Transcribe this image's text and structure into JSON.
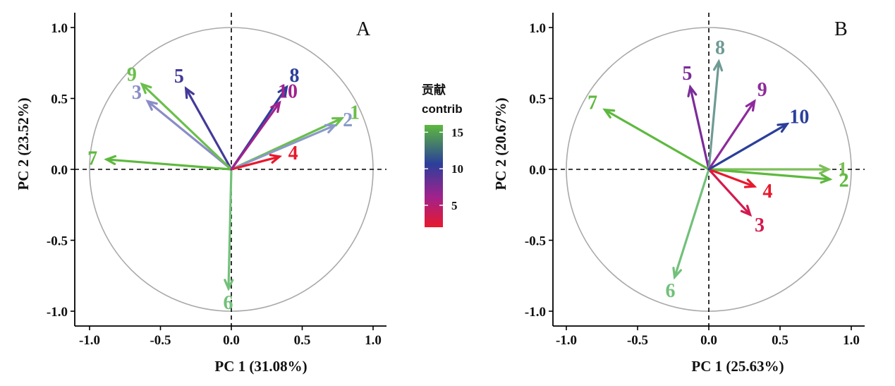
{
  "chart_data": [
    {
      "type": "scatter",
      "subtype": "pca-variable-correlation-circle",
      "panel_label": "A",
      "xlabel": "PC 1 (31.08%)",
      "ylabel": "PC 2 (23.52%)",
      "xlim": [
        -1.0,
        1.0
      ],
      "ylim": [
        -1.0,
        1.0
      ],
      "xticks": [
        "-1.0",
        "-0.5",
        "0.0",
        "0.5",
        "1.0"
      ],
      "yticks": [
        "-1.0",
        "-0.5",
        "0.0",
        "0.5",
        "1.0"
      ],
      "unit_circle": true,
      "reference_lines": "dashed at x=0 and y=0",
      "vectors": [
        {
          "label": "1",
          "x": 0.78,
          "y": 0.36,
          "color": "#6abf4b",
          "contrib": 15.0
        },
        {
          "label": "2",
          "x": 0.73,
          "y": 0.31,
          "color": "#8a9ac8",
          "contrib": 13.5
        },
        {
          "label": "3",
          "x": -0.59,
          "y": 0.48,
          "color": "#8a8cc8",
          "contrib": 13.0
        },
        {
          "label": "4",
          "x": 0.34,
          "y": 0.09,
          "color": "#e8192c",
          "contrib": 2.5
        },
        {
          "label": "5",
          "x": -0.32,
          "y": 0.57,
          "color": "#433a9a",
          "contrib": 9.0
        },
        {
          "label": "6",
          "x": -0.02,
          "y": -0.84,
          "color": "#72c07a",
          "contrib": 15.5
        },
        {
          "label": "7",
          "x": -0.88,
          "y": 0.07,
          "color": "#5db93e",
          "contrib": 16.0
        },
        {
          "label": "8",
          "x": 0.39,
          "y": 0.58,
          "color": "#2b3f9a",
          "contrib": 10.0
        },
        {
          "label": "9",
          "x": -0.63,
          "y": 0.6,
          "color": "#6abf4b",
          "contrib": 15.5
        },
        {
          "label": "10",
          "x": 0.34,
          "y": 0.47,
          "color": "#a0228e",
          "contrib": 7.5
        }
      ]
    },
    {
      "type": "scatter",
      "subtype": "pca-variable-correlation-circle",
      "panel_label": "B",
      "xlabel": "PC 1 (25.63%)",
      "ylabel": "PC 2 (20.67%)",
      "xlim": [
        -1.0,
        1.0
      ],
      "ylim": [
        -1.0,
        1.0
      ],
      "xticks": [
        "-1.0",
        "-0.5",
        "0.0",
        "0.5",
        "1.0"
      ],
      "yticks": [
        "-1.0",
        "-0.5",
        "0.0",
        "0.5",
        "1.0"
      ],
      "unit_circle": true,
      "reference_lines": "dashed at x=0 and y=0",
      "vectors": [
        {
          "label": "1",
          "x": 0.84,
          "y": 0.0,
          "color": "#7dbf5a",
          "contrib": 15.0
        },
        {
          "label": "2",
          "x": 0.85,
          "y": -0.07,
          "color": "#5db93e",
          "contrib": 16.0
        },
        {
          "label": "3",
          "x": 0.29,
          "y": -0.32,
          "color": "#d41a4e",
          "contrib": 4.0
        },
        {
          "label": "4",
          "x": 0.32,
          "y": -0.12,
          "color": "#e8192c",
          "contrib": 2.5
        },
        {
          "label": "5",
          "x": -0.13,
          "y": 0.58,
          "color": "#7b2c9a",
          "contrib": 8.0
        },
        {
          "label": "6",
          "x": -0.24,
          "y": -0.76,
          "color": "#72c07a",
          "contrib": 15.0
        },
        {
          "label": "7",
          "x": -0.73,
          "y": 0.42,
          "color": "#5db93e",
          "contrib": 16.0
        },
        {
          "label": "8",
          "x": 0.07,
          "y": 0.76,
          "color": "#6e9a94",
          "contrib": 12.5
        },
        {
          "label": "9",
          "x": 0.32,
          "y": 0.48,
          "color": "#8e2a9c",
          "contrib": 7.5
        },
        {
          "label": "10",
          "x": 0.55,
          "y": 0.32,
          "color": "#2b3f9a",
          "contrib": 10.0
        }
      ]
    }
  ],
  "legend": {
    "title_cn": "贡献",
    "title_en": "contrib",
    "ticks": [
      "15",
      "10",
      "5"
    ],
    "tick_values": [
      15,
      10,
      5
    ],
    "range": [
      2,
      16
    ],
    "gradient_colors": [
      "#5db93e",
      "#2b3f9a",
      "#a0228e",
      "#e8192c"
    ]
  }
}
